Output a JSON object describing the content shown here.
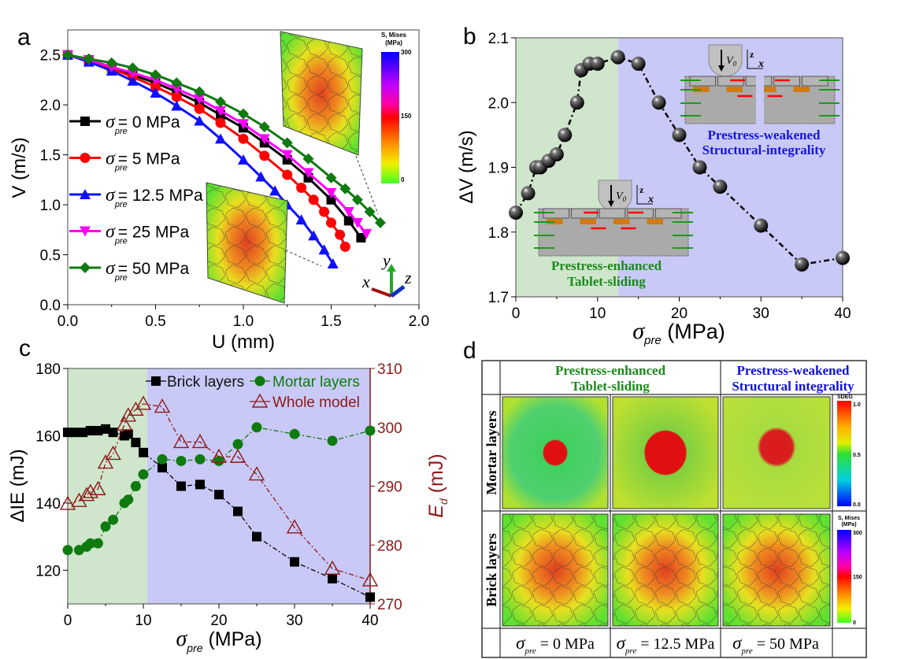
{
  "panel_letters": {
    "a": "a",
    "b": "b",
    "c": "c",
    "d": "d"
  },
  "chart_data": [
    {
      "panel": "a",
      "type": "line",
      "xlabel": "U (mm)",
      "ylabel": "V (m/s)",
      "xlim": [
        0,
        2.0
      ],
      "ylim": [
        0,
        2.75
      ],
      "xticks": [
        "0.0",
        "0.5",
        "1.0",
        "1.5",
        "2.0"
      ],
      "yticks": [
        "0.0",
        "0.5",
        "1.0",
        "1.5",
        "2.0",
        "2.5"
      ],
      "grid": false,
      "legend_placement": "left",
      "series": [
        {
          "name": "σpre = 0 MPa",
          "sym": "σ",
          "sub": "pre",
          "value": "= 0 MPa",
          "color": "#000000",
          "marker": "square",
          "points": [
            [
              0,
              2.5
            ],
            [
              0.12,
              2.45
            ],
            [
              0.25,
              2.37
            ],
            [
              0.37,
              2.3
            ],
            [
              0.5,
              2.22
            ],
            [
              0.62,
              2.13
            ],
            [
              0.75,
              2.02
            ],
            [
              0.87,
              1.9
            ],
            [
              1.0,
              1.77
            ],
            [
              1.12,
              1.62
            ],
            [
              1.25,
              1.45
            ],
            [
              1.37,
              1.27
            ],
            [
              1.5,
              1.05
            ],
            [
              1.6,
              0.84
            ],
            [
              1.67,
              0.67
            ]
          ]
        },
        {
          "name": "σpre = 5 MPa",
          "sym": "σ",
          "sub": "pre",
          "value": "= 5 MPa",
          "color": "#ff0000",
          "marker": "circle",
          "points": [
            [
              0,
              2.5
            ],
            [
              0.12,
              2.44
            ],
            [
              0.25,
              2.36
            ],
            [
              0.37,
              2.28
            ],
            [
              0.5,
              2.18
            ],
            [
              0.62,
              2.08
            ],
            [
              0.75,
              1.96
            ],
            [
              0.87,
              1.82
            ],
            [
              1.0,
              1.66
            ],
            [
              1.12,
              1.49
            ],
            [
              1.25,
              1.3
            ],
            [
              1.33,
              1.17
            ],
            [
              1.4,
              1.05
            ],
            [
              1.46,
              0.93
            ],
            [
              1.5,
              0.82
            ],
            [
              1.55,
              0.7
            ],
            [
              1.58,
              0.58
            ]
          ]
        },
        {
          "name": "σpre = 12.5 MPa",
          "sym": "σ",
          "sub": "pre",
          "value": "= 12.5 MPa",
          "color": "#1010ff",
          "marker": "triangle-up",
          "points": [
            [
              0,
              2.5
            ],
            [
              0.12,
              2.43
            ],
            [
              0.25,
              2.34
            ],
            [
              0.37,
              2.24
            ],
            [
              0.5,
              2.12
            ],
            [
              0.62,
              1.99
            ],
            [
              0.75,
              1.84
            ],
            [
              0.87,
              1.66
            ],
            [
              1.0,
              1.45
            ],
            [
              1.1,
              1.28
            ],
            [
              1.18,
              1.14
            ],
            [
              1.25,
              1.0
            ],
            [
              1.33,
              0.85
            ],
            [
              1.4,
              0.69
            ],
            [
              1.46,
              0.55
            ],
            [
              1.51,
              0.41
            ]
          ]
        },
        {
          "name": "σpre = 25 MPa",
          "sym": "σ",
          "sub": "pre",
          "value": "= 25 MPa",
          "color": "#ff00ff",
          "marker": "triangle-down",
          "points": [
            [
              0,
              2.5
            ],
            [
              0.12,
              2.45
            ],
            [
              0.25,
              2.38
            ],
            [
              0.37,
              2.32
            ],
            [
              0.5,
              2.25
            ],
            [
              0.62,
              2.16
            ],
            [
              0.75,
              2.06
            ],
            [
              0.87,
              1.94
            ],
            [
              1.0,
              1.81
            ],
            [
              1.12,
              1.66
            ],
            [
              1.25,
              1.5
            ],
            [
              1.37,
              1.32
            ],
            [
              1.5,
              1.12
            ],
            [
              1.6,
              0.93
            ],
            [
              1.65,
              0.82
            ],
            [
              1.7,
              0.71
            ]
          ]
        },
        {
          "name": "σpre = 50 MPa",
          "sym": "σ",
          "sub": "pre",
          "value": "= 50 MPa",
          "color": "#0f7a0f",
          "marker": "diamond",
          "points": [
            [
              0,
              2.5
            ],
            [
              0.12,
              2.46
            ],
            [
              0.25,
              2.42
            ],
            [
              0.37,
              2.37
            ],
            [
              0.5,
              2.3
            ],
            [
              0.62,
              2.22
            ],
            [
              0.75,
              2.13
            ],
            [
              0.87,
              2.03
            ],
            [
              1.0,
              1.91
            ],
            [
              1.12,
              1.78
            ],
            [
              1.25,
              1.62
            ],
            [
              1.37,
              1.46
            ],
            [
              1.5,
              1.27
            ],
            [
              1.58,
              1.16
            ],
            [
              1.65,
              1.05
            ],
            [
              1.72,
              0.93
            ],
            [
              1.78,
              0.82
            ]
          ]
        }
      ],
      "inset_colorbar": {
        "title1": "S, Mises",
        "title2": "(MPa)",
        "labels": [
          "300",
          "150",
          "0"
        ]
      },
      "axis_triad": {
        "x": "x",
        "y": "y",
        "z": "z"
      }
    },
    {
      "panel": "b",
      "type": "line",
      "ylabel": "ΔV (m/s)",
      "xlabel_sym": "σ",
      "xlabel_sub": "pre",
      "xlabel_unit": " (MPa)",
      "xlim": [
        0,
        40
      ],
      "ylim": [
        1.7,
        2.1
      ],
      "xticks": [
        "0",
        "10",
        "20",
        "30",
        "40"
      ],
      "yticks": [
        "1.7",
        "1.8",
        "1.9",
        "2.0",
        "2.1"
      ],
      "grid": false,
      "regions": [
        {
          "from": 0,
          "to": 12.5,
          "color": "#cfe6cc"
        },
        {
          "from": 12.5,
          "to": 40,
          "color": "#c9c9f7"
        }
      ],
      "series": [
        {
          "color": "#000000",
          "marker": "sphere",
          "points": [
            [
              0,
              1.83
            ],
            [
              1.5,
              1.86
            ],
            [
              2.5,
              1.9
            ],
            [
              3,
              1.9
            ],
            [
              4,
              1.91
            ],
            [
              5,
              1.92
            ],
            [
              6,
              1.95
            ],
            [
              7.5,
              2.0
            ],
            [
              8,
              2.05
            ],
            [
              9,
              2.06
            ],
            [
              10,
              2.06
            ],
            [
              12.5,
              2.07
            ],
            [
              15,
              2.06
            ],
            [
              17.5,
              2.0
            ],
            [
              20,
              1.95
            ],
            [
              22.5,
              1.9
            ],
            [
              25,
              1.87
            ],
            [
              30,
              1.81
            ],
            [
              35,
              1.75
            ],
            [
              40,
              1.76
            ]
          ]
        }
      ],
      "annotations": {
        "weakened": [
          "Prestress-weakened",
          "Structural-integrality"
        ],
        "enhanced": [
          "Prestress-enhanced",
          "Tablet-sliding"
        ],
        "v0": "V",
        "v0_sub": "0",
        "z": "z",
        "x": "x"
      }
    },
    {
      "panel": "c",
      "type": "line",
      "ylabel": "ΔIE (mJ)",
      "y2label_sym": "E",
      "y2label_sub": "d",
      "y2label_unit": " (mJ)",
      "xlabel_sym": "σ",
      "xlabel_sub": "pre",
      "xlabel_unit": " (MPa)",
      "xlim": [
        0,
        40
      ],
      "ylim": [
        110,
        180
      ],
      "y2lim": [
        270,
        310
      ],
      "xticks": [
        "0",
        "10",
        "20",
        "30",
        "40"
      ],
      "yticks": [
        "120",
        "140",
        "160",
        "180"
      ],
      "y2ticks": [
        "270",
        "280",
        "290",
        "300",
        "310"
      ],
      "grid": false,
      "legend_placement": "top-right",
      "regions": [
        {
          "from": 0,
          "to": 10.5,
          "color": "#cfe6cc"
        },
        {
          "from": 10.5,
          "to": 40,
          "color": "#c9c9f7"
        }
      ],
      "series": [
        {
          "name": "Brick layers",
          "color": "#000000",
          "marker": "square",
          "axis": "left",
          "points": [
            [
              0,
              161
            ],
            [
              1,
              161
            ],
            [
              2,
              161
            ],
            [
              3,
              161.5
            ],
            [
              4,
              161.5
            ],
            [
              5,
              162
            ],
            [
              6,
              161
            ],
            [
              7.5,
              160
            ],
            [
              8,
              160.5
            ],
            [
              9,
              158
            ],
            [
              10,
              155
            ],
            [
              12.5,
              150.5
            ],
            [
              15,
              145
            ],
            [
              17.5,
              145.5
            ],
            [
              20,
              142.5
            ],
            [
              22.5,
              137.5
            ],
            [
              25,
              130
            ],
            [
              30,
              122.5
            ],
            [
              35,
              117.5
            ],
            [
              40,
              112
            ]
          ]
        },
        {
          "name": "Mortar layers",
          "color": "#0f7a0f",
          "marker": "circle",
          "axis": "left",
          "points": [
            [
              0,
              126
            ],
            [
              1.5,
              126
            ],
            [
              2.5,
              127
            ],
            [
              3,
              128
            ],
            [
              4,
              128
            ],
            [
              5,
              133
            ],
            [
              6,
              135
            ],
            [
              7.5,
              140
            ],
            [
              8,
              141
            ],
            [
              9,
              145
            ],
            [
              10,
              148.5
            ],
            [
              12.5,
              153
            ],
            [
              15,
              152.5
            ],
            [
              17.5,
              153
            ],
            [
              20,
              152.5
            ],
            [
              22.5,
              157.5
            ],
            [
              25,
              162.5
            ],
            [
              30,
              160.5
            ],
            [
              35,
              158.5
            ],
            [
              40,
              161.5
            ]
          ]
        },
        {
          "name": "Whole model",
          "color": "#8b1a1a",
          "marker": "triangle-open",
          "axis": "right",
          "points": [
            [
              0,
              287
            ],
            [
              1.5,
              287.5
            ],
            [
              2.5,
              288.5
            ],
            [
              3,
              289
            ],
            [
              4,
              289.5
            ],
            [
              5,
              294
            ],
            [
              6,
              295.5
            ],
            [
              7.5,
              300.5
            ],
            [
              8,
              302
            ],
            [
              9,
              303
            ],
            [
              10,
              304
            ],
            [
              12.5,
              303.5
            ],
            [
              15,
              297.5
            ],
            [
              17.5,
              297.5
            ],
            [
              20,
              295
            ],
            [
              22.5,
              295
            ],
            [
              25,
              292
            ],
            [
              30,
              283
            ],
            [
              35,
              276
            ],
            [
              40,
              274
            ]
          ]
        }
      ]
    }
  ],
  "panel_d": {
    "headers": [
      {
        "lines": [
          "Prestress-enhanced",
          "Tablet-sliding"
        ],
        "color": "#1a8a1a"
      },
      {
        "lines": [
          "Prestress-weakened",
          "Structural integrality"
        ],
        "color": "#1010e0"
      }
    ],
    "row_labels": [
      "Mortar layers",
      "Brick layers"
    ],
    "columns": [
      {
        "sym": "σ",
        "sub": "pre",
        "value": " = 0 MPa"
      },
      {
        "sym": "σ",
        "sub": "pre",
        "value": " = 12.5 MPa"
      },
      {
        "sym": "σ",
        "sub": "pre",
        "value": " = 50 MPa"
      }
    ],
    "sdeg_colorbar": {
      "title": "SDEG",
      "labels": [
        "1.0",
        "0.5",
        "0.0"
      ]
    },
    "mises_colorbar": {
      "title1": "S, Mises",
      "title2": "(MPa)",
      "labels": [
        "300",
        "150",
        "0"
      ]
    }
  }
}
